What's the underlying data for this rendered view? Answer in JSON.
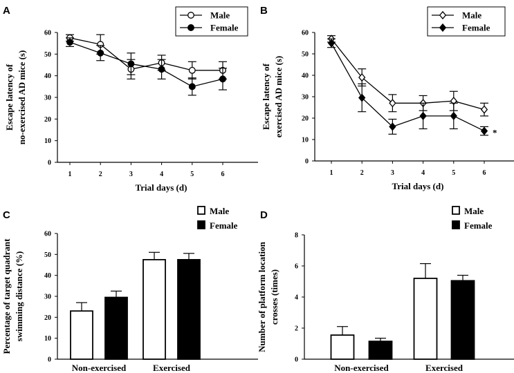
{
  "figure": {
    "panel_labels": [
      "A",
      "B",
      "C",
      "D"
    ]
  },
  "colors": {
    "male_fill": "#ffffff",
    "female_fill": "#000000",
    "stroke": "#000000"
  },
  "chart_data": [
    {
      "id": "A",
      "type": "line",
      "title": "",
      "xlabel": "Trial days (d)",
      "ylabel_lines": [
        "Escape latency of",
        "no-exercised AD mice (s)"
      ],
      "x": [
        1,
        2,
        3,
        4,
        5,
        6
      ],
      "xlim": [
        0.5,
        6.9
      ],
      "ylim": [
        0,
        60
      ],
      "yticks": [
        0,
        10,
        20,
        30,
        40,
        50,
        60
      ],
      "legend": "top-right",
      "series": [
        {
          "name": "Male",
          "marker": "open-circle",
          "values": [
            57.5,
            54.5,
            43,
            46,
            42.5,
            42.5
          ],
          "err": [
            1.5,
            4.5,
            4.5,
            3.5,
            4,
            4
          ]
        },
        {
          "name": "Female",
          "marker": "filled-circle",
          "values": [
            55.5,
            50.5,
            45.5,
            43,
            35,
            38.5
          ],
          "err": [
            2,
            3.5,
            5,
            4.5,
            4,
            5
          ]
        }
      ]
    },
    {
      "id": "B",
      "type": "line",
      "title": "",
      "xlabel": "Trial days (d)",
      "ylabel_lines": [
        "Escape latency of",
        "exercised AD mice (s)"
      ],
      "x": [
        1,
        2,
        3,
        4,
        5,
        6
      ],
      "xlim": [
        0.5,
        6.9
      ],
      "ylim": [
        0,
        60
      ],
      "yticks": [
        0,
        10,
        20,
        30,
        40,
        50,
        60
      ],
      "legend": "top-right",
      "annotation": "*",
      "series": [
        {
          "name": "Male",
          "marker": "open-diamond",
          "values": [
            57,
            39,
            27,
            27,
            28,
            24
          ],
          "err": [
            1.5,
            4,
            4,
            3.5,
            4.5,
            3
          ]
        },
        {
          "name": "Female",
          "marker": "filled-diamond",
          "values": [
            55,
            29.5,
            16,
            21,
            21,
            14
          ],
          "err": [
            2,
            6.5,
            3.5,
            6,
            6,
            2
          ]
        }
      ]
    },
    {
      "id": "C",
      "type": "bar",
      "title": "",
      "xlabel": "",
      "ylabel_lines": [
        "Percentage of target quadrant",
        "swimming distance (%)"
      ],
      "categories": [
        "Non-exercised",
        "Exercised"
      ],
      "ylim": [
        0,
        60
      ],
      "yticks": [
        0,
        10,
        20,
        30,
        40,
        50,
        60
      ],
      "legend": "top-right",
      "series": [
        {
          "name": "Male",
          "values": [
            23,
            47.5
          ],
          "err": [
            4,
            3.5
          ]
        },
        {
          "name": "Female",
          "values": [
            29.5,
            47.5
          ],
          "err": [
            3,
            3
          ]
        }
      ]
    },
    {
      "id": "D",
      "type": "bar",
      "title": "",
      "xlabel": "",
      "ylabel_lines": [
        "Number of platform location",
        "crosses (times)"
      ],
      "categories": [
        "Non-exercised",
        "Exercised"
      ],
      "ylim": [
        0,
        8
      ],
      "yticks": [
        0,
        2,
        4,
        6,
        8
      ],
      "legend": "top-right",
      "series": [
        {
          "name": "Male",
          "values": [
            1.55,
            5.2
          ],
          "err": [
            0.55,
            0.95
          ]
        },
        {
          "name": "Female",
          "values": [
            1.15,
            5.05
          ],
          "err": [
            0.2,
            0.35
          ]
        }
      ]
    }
  ]
}
